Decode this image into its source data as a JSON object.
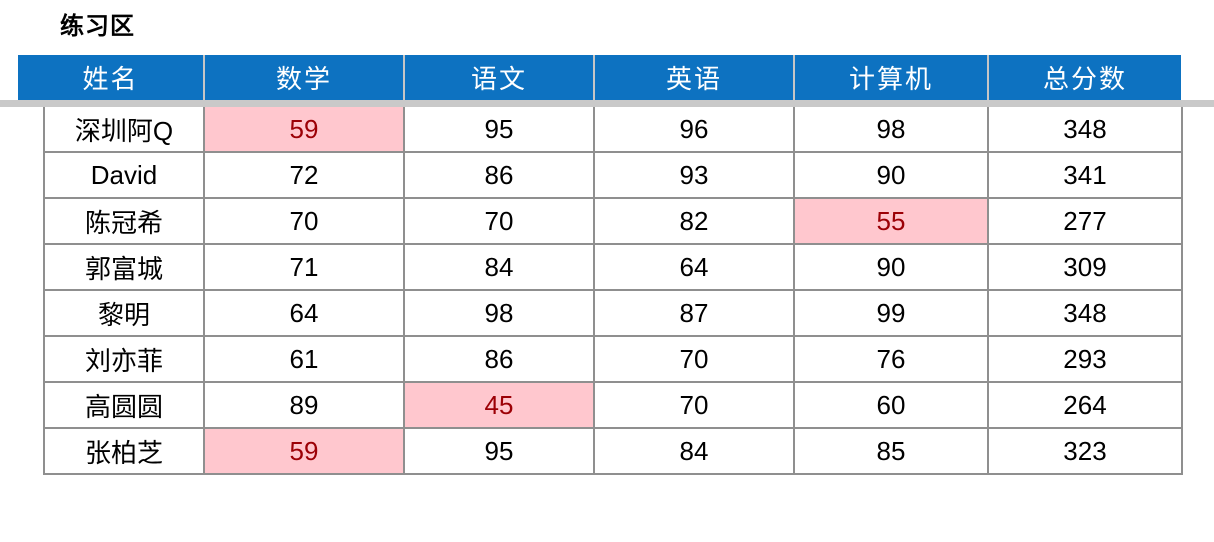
{
  "title": "练习区",
  "table": {
    "columns": [
      "姓名",
      "数学",
      "语文",
      "英语",
      "计算机",
      "总分数"
    ],
    "rows": [
      {
        "name": "深圳阿Q",
        "scores": [
          {
            "value": "59",
            "highlight": true
          },
          {
            "value": "95",
            "highlight": false
          },
          {
            "value": "96",
            "highlight": false
          },
          {
            "value": "98",
            "highlight": false
          }
        ],
        "total": "348"
      },
      {
        "name": "David",
        "scores": [
          {
            "value": "72",
            "highlight": false
          },
          {
            "value": "86",
            "highlight": false
          },
          {
            "value": "93",
            "highlight": false
          },
          {
            "value": "90",
            "highlight": false
          }
        ],
        "total": "341"
      },
      {
        "name": "陈冠希",
        "scores": [
          {
            "value": "70",
            "highlight": false
          },
          {
            "value": "70",
            "highlight": false
          },
          {
            "value": "82",
            "highlight": false
          },
          {
            "value": "55",
            "highlight": true
          }
        ],
        "total": "277"
      },
      {
        "name": "郭富城",
        "scores": [
          {
            "value": "71",
            "highlight": false
          },
          {
            "value": "84",
            "highlight": false
          },
          {
            "value": "64",
            "highlight": false
          },
          {
            "value": "90",
            "highlight": false
          }
        ],
        "total": "309"
      },
      {
        "name": "黎明",
        "scores": [
          {
            "value": "64",
            "highlight": false
          },
          {
            "value": "98",
            "highlight": false
          },
          {
            "value": "87",
            "highlight": false
          },
          {
            "value": "99",
            "highlight": false
          }
        ],
        "total": "348"
      },
      {
        "name": "刘亦菲",
        "scores": [
          {
            "value": "61",
            "highlight": false
          },
          {
            "value": "86",
            "highlight": false
          },
          {
            "value": "70",
            "highlight": false
          },
          {
            "value": "76",
            "highlight": false
          }
        ],
        "total": "293"
      },
      {
        "name": "高圆圆",
        "scores": [
          {
            "value": "89",
            "highlight": false
          },
          {
            "value": "45",
            "highlight": true
          },
          {
            "value": "70",
            "highlight": false
          },
          {
            "value": "60",
            "highlight": false
          }
        ],
        "total": "264"
      },
      {
        "name": "张柏芝",
        "scores": [
          {
            "value": "59",
            "highlight": true
          },
          {
            "value": "95",
            "highlight": false
          },
          {
            "value": "84",
            "highlight": false
          },
          {
            "value": "85",
            "highlight": false
          }
        ],
        "total": "323"
      }
    ]
  },
  "colors": {
    "header_bg": "#0d72c1",
    "header_text": "#ffffff",
    "highlight_bg": "#ffc7ce",
    "highlight_text": "#9c0006",
    "grid_line": "#8f8f8f",
    "separator": "#c9c9c9"
  }
}
